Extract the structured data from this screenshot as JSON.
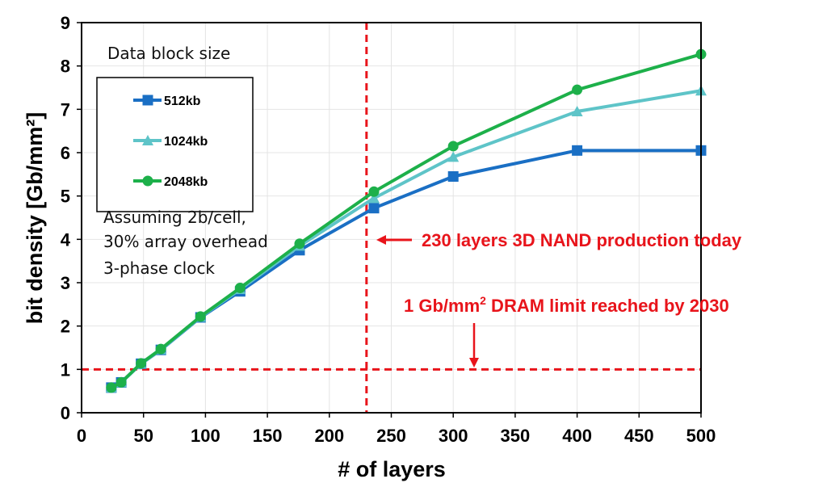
{
  "chart_data": {
    "type": "line",
    "title": "",
    "xlabel": "# of layers",
    "ylabel": "bit density [Gb/mm²]",
    "xlim": [
      0,
      500
    ],
    "ylim": [
      0,
      9
    ],
    "xticks": [
      0,
      50,
      100,
      150,
      200,
      250,
      300,
      350,
      400,
      450,
      500
    ],
    "yticks": [
      0,
      1,
      2,
      3,
      4,
      5,
      6,
      7,
      8,
      9
    ],
    "grid": true,
    "legend": {
      "title": "Data block size",
      "placement": "top-left"
    },
    "x": [
      24,
      32,
      48,
      64,
      96,
      128,
      176,
      236,
      300,
      400,
      500
    ],
    "series": [
      {
        "name": "512kb",
        "color": "#1a6fc4",
        "marker": "square",
        "values": [
          0.58,
          0.7,
          1.13,
          1.45,
          2.2,
          2.8,
          3.75,
          4.72,
          5.45,
          6.05,
          6.05
        ]
      },
      {
        "name": "1024kb",
        "color": "#5ec4c8",
        "marker": "triangle",
        "values": [
          0.58,
          0.7,
          1.13,
          1.46,
          2.21,
          2.85,
          3.85,
          4.95,
          5.9,
          6.95,
          7.43
        ]
      },
      {
        "name": "2048kb",
        "color": "#1db04a",
        "marker": "circle",
        "values": [
          0.58,
          0.7,
          1.14,
          1.47,
          2.22,
          2.88,
          3.9,
          5.1,
          6.15,
          7.45,
          8.27
        ]
      }
    ],
    "reference_lines": [
      {
        "orientation": "vertical",
        "value": 230,
        "color": "#e8141b",
        "style": "dashed"
      },
      {
        "orientation": "horizontal",
        "value": 1,
        "color": "#e8141b",
        "style": "dashed"
      }
    ],
    "annotations": {
      "assumptions": [
        "Assuming 2b/cell,",
        "30% array overhead",
        "3-phase clock"
      ],
      "nand": "230 layers 3D NAND production today",
      "dram_prefix": "1 Gb/mm",
      "dram_sup": "2",
      "dram_suffix": " DRAM limit reached by 2030"
    }
  }
}
